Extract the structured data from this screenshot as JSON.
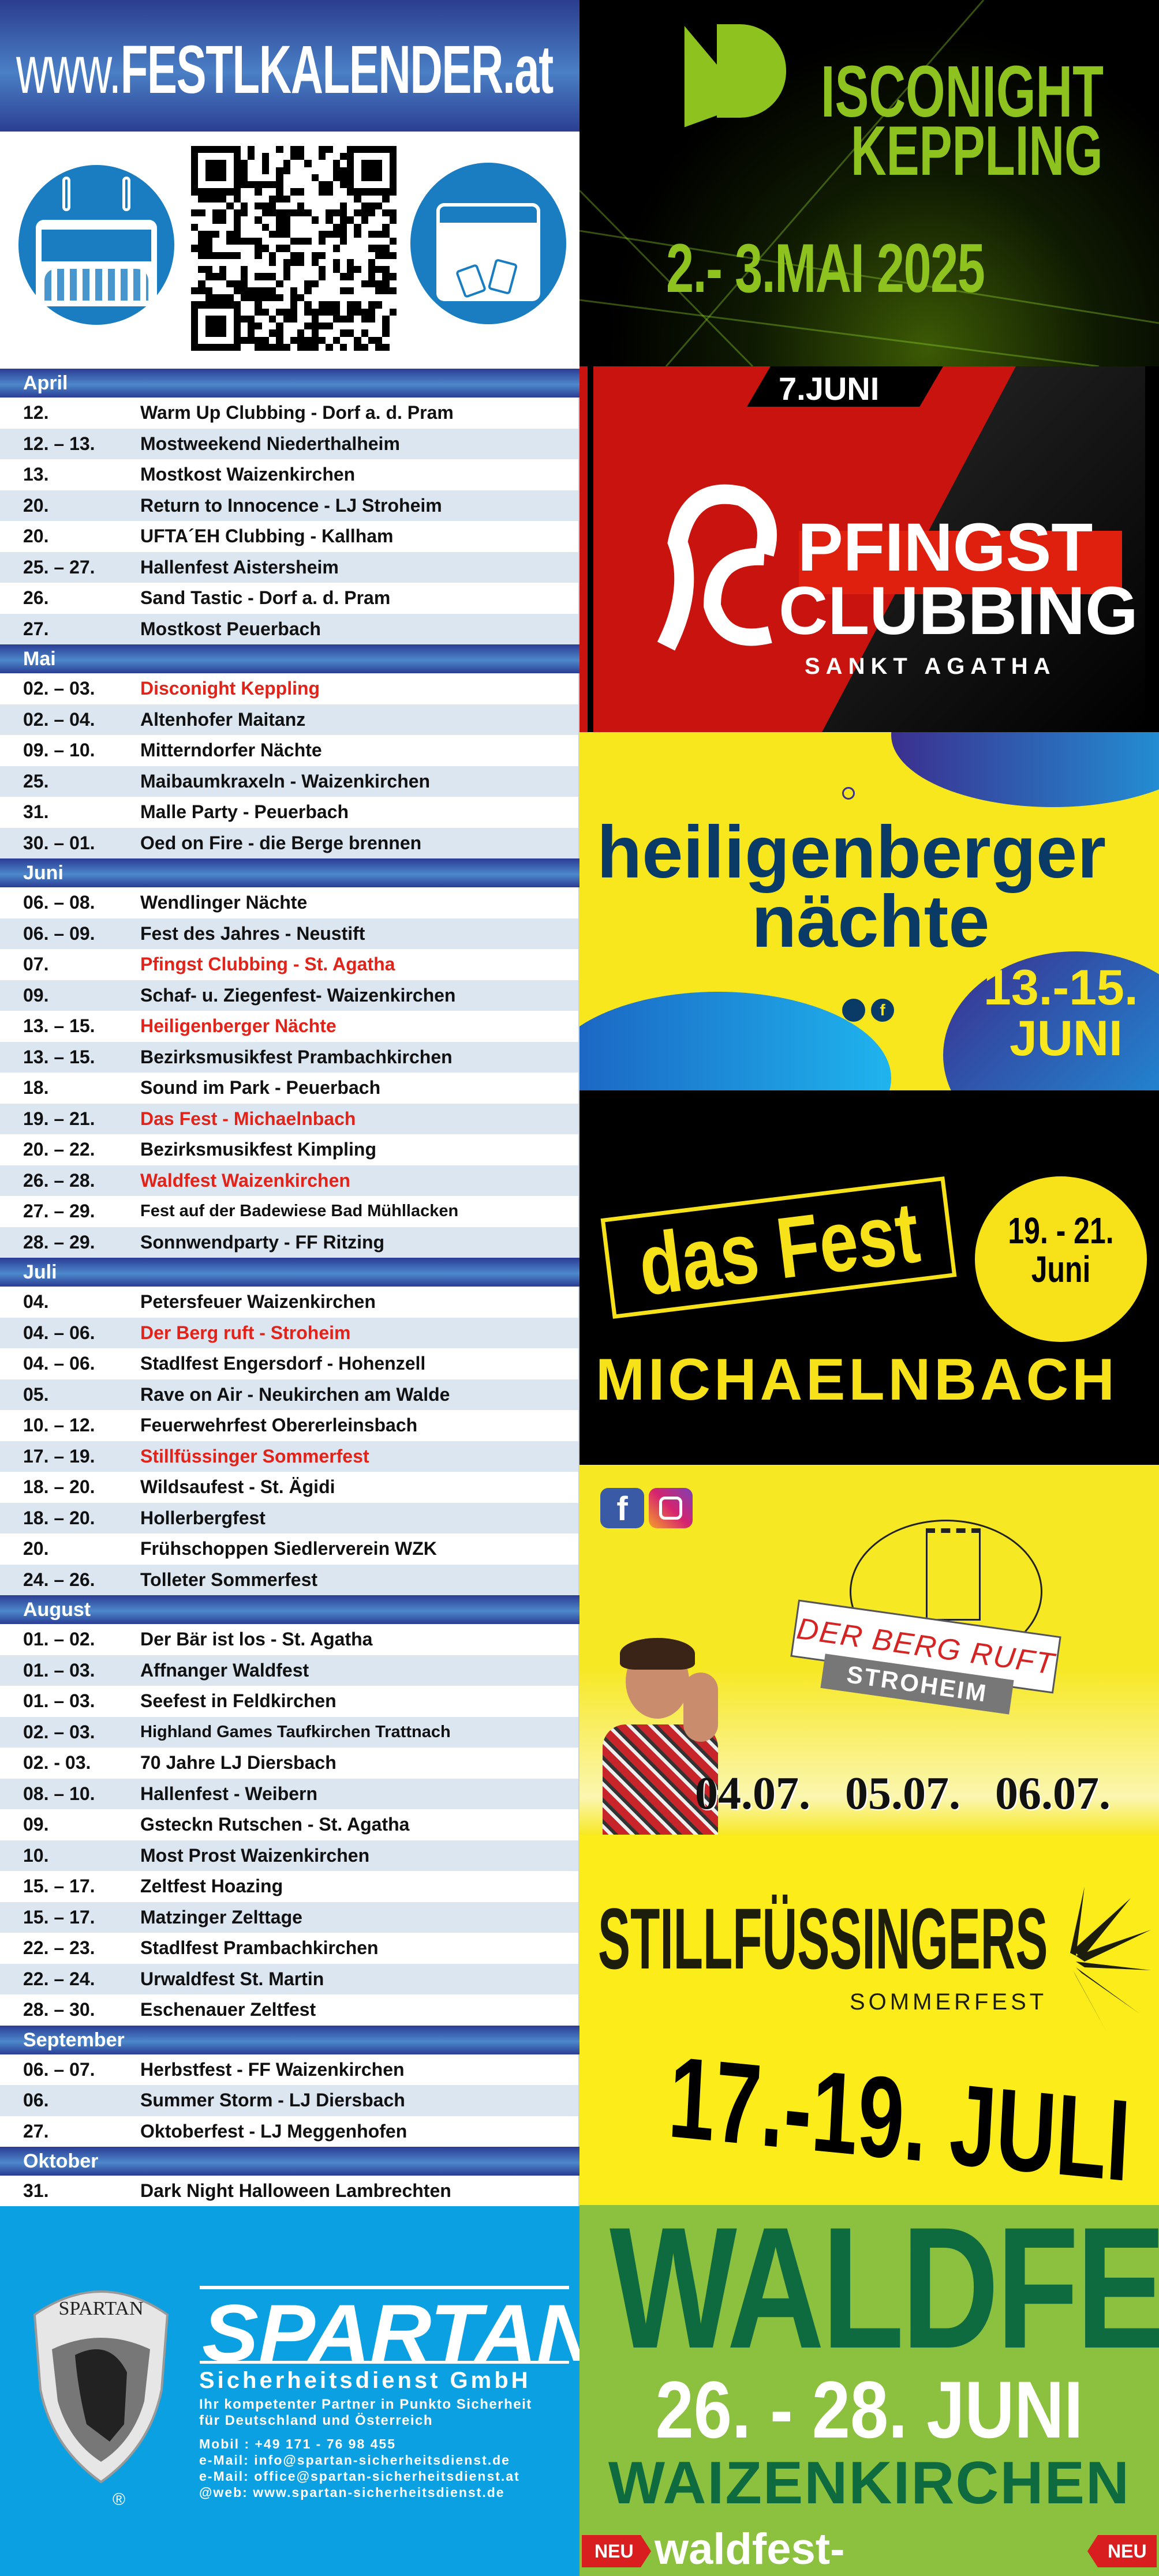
{
  "header": {
    "www": "www.",
    "brand": "FESTLKALENDER",
    "tld": ".at"
  },
  "icons": {
    "left": "calendar-crowd-icon",
    "qr": "qr-code",
    "right": "calendar-beer-icon"
  },
  "colors": {
    "month_bar": "#3a62b0",
    "row_alt": "#dce6f1",
    "highlight": "#e2231a",
    "spartan_bg": "#0aa0e1"
  },
  "months": [
    {
      "name": "April",
      "events": [
        {
          "date": "12.",
          "name": "Warm Up Clubbing - Dorf a. d. Pram"
        },
        {
          "date": "12. – 13.",
          "name": "Mostweekend Niederthalheim"
        },
        {
          "date": "13.",
          "name": "Mostkost Waizenkirchen"
        },
        {
          "date": "20.",
          "name": "Return to Innocence - LJ Stroheim"
        },
        {
          "date": "20.",
          "name": "UFTA´EH Clubbing - Kallham"
        },
        {
          "date": "25. – 27.",
          "name": "Hallenfest Aistersheim"
        },
        {
          "date": "26.",
          "name": "Sand Tastic - Dorf a. d. Pram"
        },
        {
          "date": "27.",
          "name": "Mostkost Peuerbach"
        }
      ]
    },
    {
      "name": "Mai",
      "events": [
        {
          "date": "02. – 03.",
          "name": "Disconight Keppling",
          "highlight": true
        },
        {
          "date": "02. – 04.",
          "name": "Altenhofer Maitanz"
        },
        {
          "date": "09. – 10.",
          "name": "Mitterndorfer Nächte"
        },
        {
          "date": "25.",
          "name": "Maibaumkraxeln - Waizenkirchen"
        },
        {
          "date": "31.",
          "name": "Malle Party -  Peuerbach"
        },
        {
          "date": "30. – 01.",
          "name": "Oed on Fire - die Berge brennen"
        }
      ]
    },
    {
      "name": "Juni",
      "events": [
        {
          "date": "06. – 08.",
          "name": "Wendlinger Nächte"
        },
        {
          "date": "06. – 09.",
          "name": "Fest des Jahres - Neustift"
        },
        {
          "date": "07.",
          "name": "Pfingst Clubbing - St. Agatha",
          "highlight": true
        },
        {
          "date": "09.",
          "name": "Schaf- u. Ziegenfest- Waizenkirchen"
        },
        {
          "date": "13. – 15.",
          "name": "Heiligenberger Nächte",
          "highlight": true
        },
        {
          "date": "13. – 15.",
          "name": "Bezirksmusikfest Prambachkirchen"
        },
        {
          "date": "18.",
          "name": "Sound im Park - Peuerbach"
        },
        {
          "date": "19. – 21.",
          "name": "Das Fest - Michaelnbach",
          "highlight": true
        },
        {
          "date": "20. – 22.",
          "name": "Bezirksmusikfest Kimpling"
        },
        {
          "date": "26. – 28.",
          "name": "Waldfest Waizenkirchen",
          "highlight": true
        },
        {
          "date": "27. – 29.",
          "name": "Fest auf der Badewiese Bad Mühllacken",
          "small": true
        },
        {
          "date": "28. – 29.",
          "name": "Sonnwendparty - FF Ritzing"
        }
      ]
    },
    {
      "name": "Juli",
      "events": [
        {
          "date": "04.",
          "name": "Petersfeuer Waizenkirchen"
        },
        {
          "date": "04. – 06.",
          "name": "Der Berg ruft - Stroheim",
          "highlight": true
        },
        {
          "date": "04. – 06.",
          "name": "Stadlfest Engersdorf - Hohenzell"
        },
        {
          "date": "05.",
          "name": "Rave on Air - Neukirchen am Walde"
        },
        {
          "date": "10. – 12.",
          "name": "Feuerwehrfest Obererleinsbach"
        },
        {
          "date": "17. – 19.",
          "name": "Stillfüssinger Sommerfest",
          "highlight": true
        },
        {
          "date": "18. – 20.",
          "name": "Wildsaufest - St. Ägidi"
        },
        {
          "date": "18. – 20.",
          "name": "Hollerbergfest"
        },
        {
          "date": "20.",
          "name": "Frühschoppen Siedlerverein WZK"
        },
        {
          "date": "24. – 26.",
          "name": "Tolleter Sommerfest"
        }
      ]
    },
    {
      "name": "August",
      "events": [
        {
          "date": "01. – 02.",
          "name": "Der Bär ist los -  St. Agatha"
        },
        {
          "date": "01. – 03.",
          "name": "Affnanger Waldfest"
        },
        {
          "date": "01. – 03.",
          "name": "Seefest in Feldkirchen"
        },
        {
          "date": "02. – 03.",
          "name": "Highland Games Taufkirchen Trattnach",
          "small": true
        },
        {
          "date": "02. - 03.",
          "name": "70 Jahre LJ Diersbach"
        },
        {
          "date": "08. – 10.",
          "name": "Hallenfest - Weibern"
        },
        {
          "date": "09.",
          "name": "Gsteckn Rutschen - St. Agatha"
        },
        {
          "date": "10.",
          "name": "Most Prost Waizenkirchen"
        },
        {
          "date": "15. – 17.",
          "name": "Zeltfest Hoazing"
        },
        {
          "date": "15. – 17.",
          "name": "Matzinger Zelttage"
        },
        {
          "date": "22. – 23.",
          "name": "Stadlfest Prambachkirchen"
        },
        {
          "date": "22. – 24.",
          "name": "Urwaldfest St. Martin"
        },
        {
          "date": "28. – 30.",
          "name": "Eschenauer Zeltfest"
        }
      ]
    },
    {
      "name": "September",
      "events": [
        {
          "date": "06. – 07.",
          "name": "Herbstfest - FF Waizenkirchen"
        },
        {
          "date": "06.",
          "name": "Summer Storm - LJ Diersbach"
        },
        {
          "date": "27.",
          "name": "Oktoberfest - LJ Meggenhofen"
        }
      ]
    },
    {
      "name": "Oktober",
      "events": [
        {
          "date": "31.",
          "name": "Dark Night Halloween Lambrechten"
        }
      ]
    }
  ],
  "spartan": {
    "shield_text": "SPARTAN",
    "logo": "SPARTAN",
    "company": "Sicherheitsdienst GmbH",
    "tagline1": "Ihr kompetenter Partner in Punkto Sicherheit",
    "tagline2": "für Deutschland und Österreich",
    "mobile": "Mobil : +49 171 - 76 98 455",
    "email1": "e-Mail: info@spartan-sicherheitsdienst.de",
    "email2": "e-Mail: office@spartan-sicherheitsdienst.at",
    "web": "@web: www.spartan-sicherheitsdienst.de",
    "registered": "®"
  },
  "ads": {
    "disco": {
      "line1": "ISCONIGHT",
      "line2": "KEPPLING",
      "date": "2.- 3.MAI 2025",
      "color": "#8dc21f"
    },
    "pfingst": {
      "date": "7.JUNI",
      "line1": "PFINGST",
      "line2": "CLUBBING",
      "place": "SANKT AGATHA"
    },
    "heilig": {
      "line1": "heiligenberger",
      "line2": "nächte",
      "date1": "13.-15.",
      "date2": "JUNI"
    },
    "dasfest": {
      "title": "das Fest",
      "date1": "19. - 21.",
      "date2": "Juni",
      "place": "MICHAELNBACH"
    },
    "berg": {
      "title": "DER BERG RUFT",
      "place": "STROHEIM",
      "dates": "04.07.   05.07.   06.07."
    },
    "still": {
      "title": "STILLFÜSSINGERS",
      "sub": "SOMMERFEST",
      "date": "17.-19. JULI"
    },
    "wald": {
      "title": "WALDFEST",
      "date": "26. - 28. JUNI",
      "place": "WAIZENKIRCHEN",
      "url": "waldfest-waizenkirchen.at",
      "badge": "NEU"
    }
  }
}
